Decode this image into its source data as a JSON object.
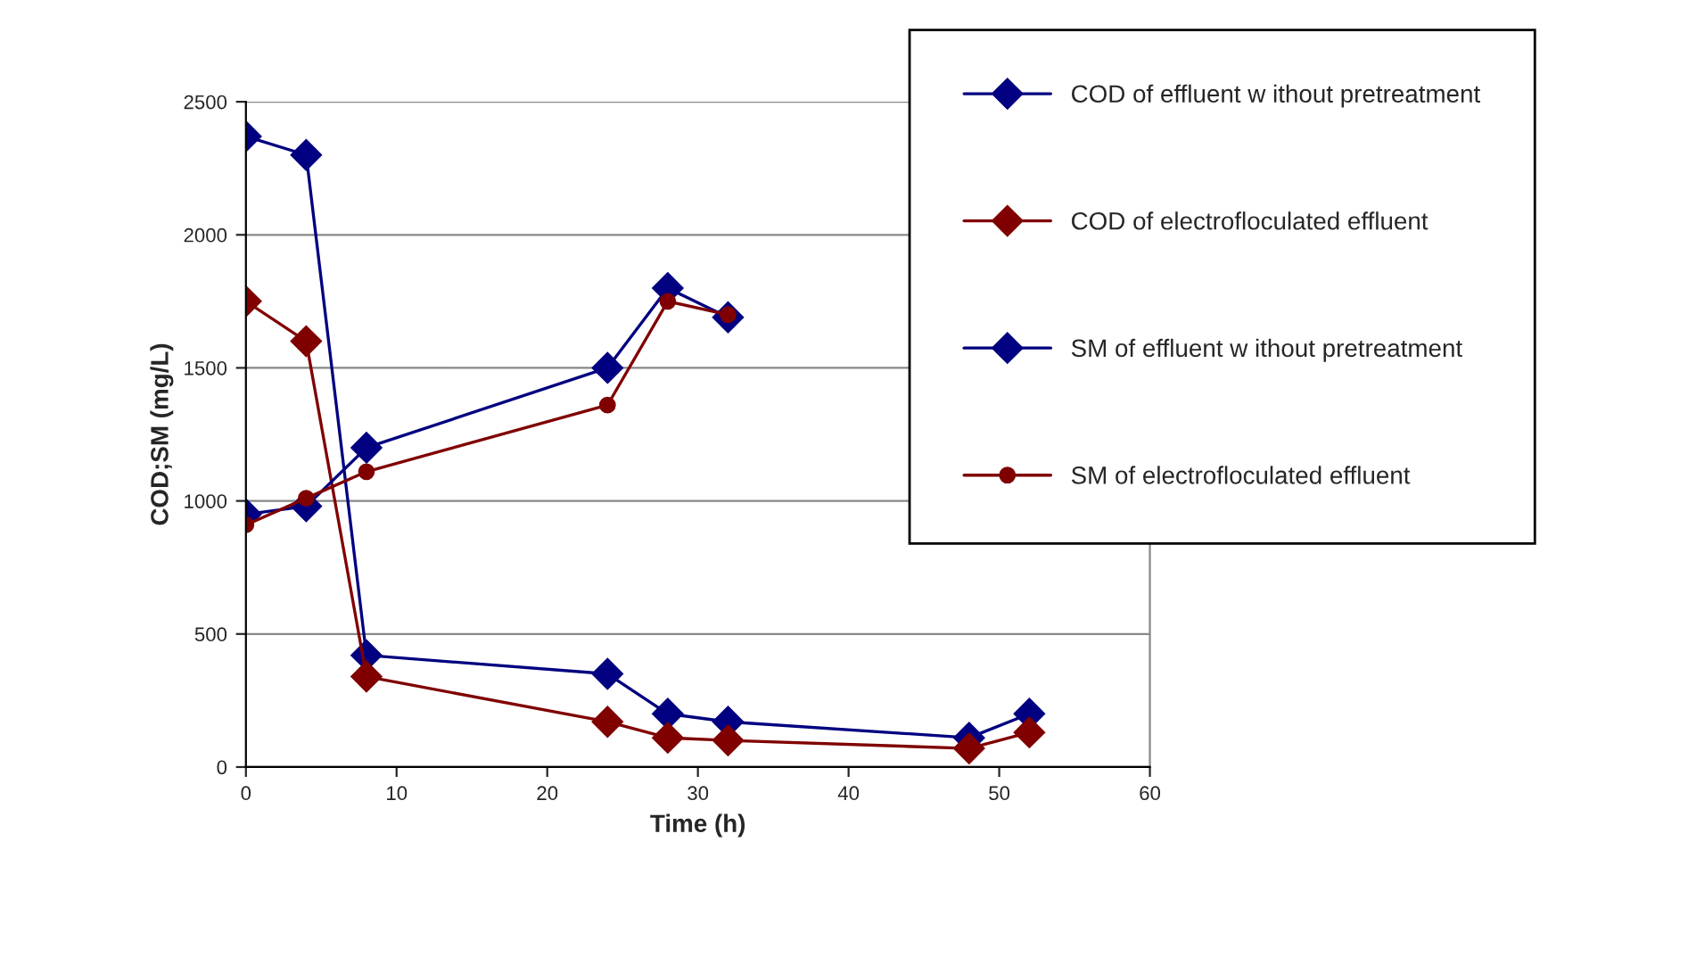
{
  "chart_data": {
    "type": "line",
    "xlabel": "Time (h)",
    "ylabel": "COD;SM (mg/L)",
    "xlim": [
      0,
      60
    ],
    "xticks": [
      0,
      10,
      20,
      30,
      40,
      50,
      60
    ],
    "ylim": [
      0,
      2500
    ],
    "yticks": [
      0,
      500,
      1000,
      1500,
      2000,
      2500
    ],
    "grid": "y",
    "legend": "top right",
    "line_style": "solid",
    "series": [
      {
        "name": "COD of effluent w ithout pretreatment",
        "color": "#000080",
        "marker": "diamond",
        "x": [
          0,
          4,
          8,
          24,
          28,
          32,
          48,
          52
        ],
        "values": [
          2370,
          2300,
          420,
          350,
          200,
          170,
          110,
          200
        ]
      },
      {
        "name": "COD of electrofloculated effluent",
        "color": "#800000",
        "marker": "diamond",
        "x": [
          0,
          4,
          8,
          24,
          28,
          32,
          48,
          52
        ],
        "values": [
          1750,
          1600,
          340,
          170,
          110,
          100,
          70,
          130
        ]
      },
      {
        "name": "SM of effluent w ithout pretreatment",
        "color": "#000080",
        "marker": "diamond",
        "x": [
          0,
          4,
          8,
          24,
          28,
          32
        ],
        "values": [
          950,
          980,
          1200,
          1500,
          1800,
          1690
        ]
      },
      {
        "name": "SM of electrofloculated effluent",
        "color": "#800000",
        "marker": "circle",
        "x": [
          0,
          4,
          8,
          24,
          28,
          32
        ],
        "values": [
          910,
          1010,
          1110,
          1360,
          1750,
          1700
        ]
      }
    ]
  }
}
